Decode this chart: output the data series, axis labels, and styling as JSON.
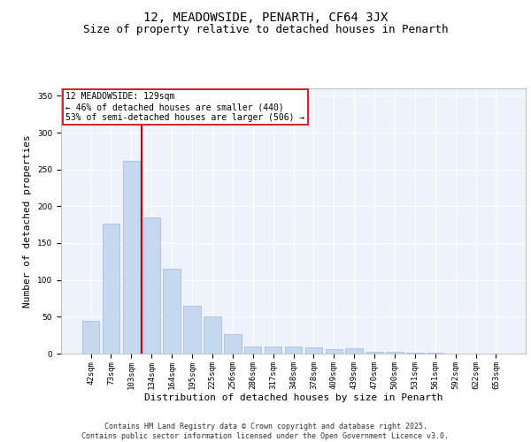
{
  "title": "12, MEADOWSIDE, PENARTH, CF64 3JX",
  "subtitle": "Size of property relative to detached houses in Penarth",
  "xlabel": "Distribution of detached houses by size in Penarth",
  "ylabel": "Number of detached properties",
  "categories": [
    "42sqm",
    "73sqm",
    "103sqm",
    "134sqm",
    "164sqm",
    "195sqm",
    "225sqm",
    "256sqm",
    "286sqm",
    "317sqm",
    "348sqm",
    "378sqm",
    "409sqm",
    "439sqm",
    "470sqm",
    "500sqm",
    "531sqm",
    "561sqm",
    "592sqm",
    "622sqm",
    "653sqm"
  ],
  "values": [
    44,
    176,
    262,
    185,
    115,
    65,
    51,
    26,
    10,
    10,
    10,
    9,
    6,
    7,
    2,
    2,
    1,
    1,
    0,
    0,
    0
  ],
  "bar_color": "#c5d8f0",
  "bar_edge_color": "#a0b8d8",
  "vline_color": "#cc0000",
  "annotation_text": "12 MEADOWSIDE: 129sqm\n← 46% of detached houses are smaller (440)\n53% of semi-detached houses are larger (506) →",
  "annotation_box_color": "#cc0000",
  "background_color": "#eef2fb",
  "grid_color": "#ffffff",
  "ylim": [
    0,
    360
  ],
  "yticks": [
    0,
    50,
    100,
    150,
    200,
    250,
    300,
    350
  ],
  "footer_text": "Contains HM Land Registry data © Crown copyright and database right 2025.\nContains public sector information licensed under the Open Government Licence v3.0.",
  "title_fontsize": 10,
  "subtitle_fontsize": 9,
  "tick_fontsize": 6.5,
  "label_fontsize": 8,
  "ann_fontsize": 7,
  "footer_fontsize": 6
}
